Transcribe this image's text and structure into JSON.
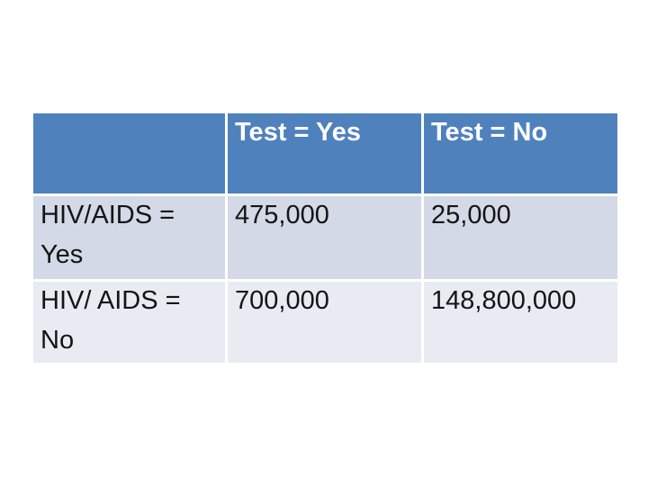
{
  "slide": {
    "background_color": "#ffffff"
  },
  "table": {
    "description": "2x2 contingency table of HIV/AIDS status versus test result",
    "header_cells": [
      "",
      "Test = Yes",
      "Test = No"
    ],
    "rows": [
      {
        "cells": [
          "HIV/AIDS = Yes",
          "475,000",
          "25,000"
        ]
      },
      {
        "cells": [
          "HIV/ AIDS = No",
          "700,000",
          "148,800,000"
        ]
      }
    ],
    "colors": {
      "header_bg": "#4f81bd",
      "header_text": "#ffffff",
      "row_odd_bg": "#d3d9e6",
      "row_even_bg": "#e9ebf3",
      "body_text": "#141414",
      "divider": "#ffffff"
    }
  }
}
